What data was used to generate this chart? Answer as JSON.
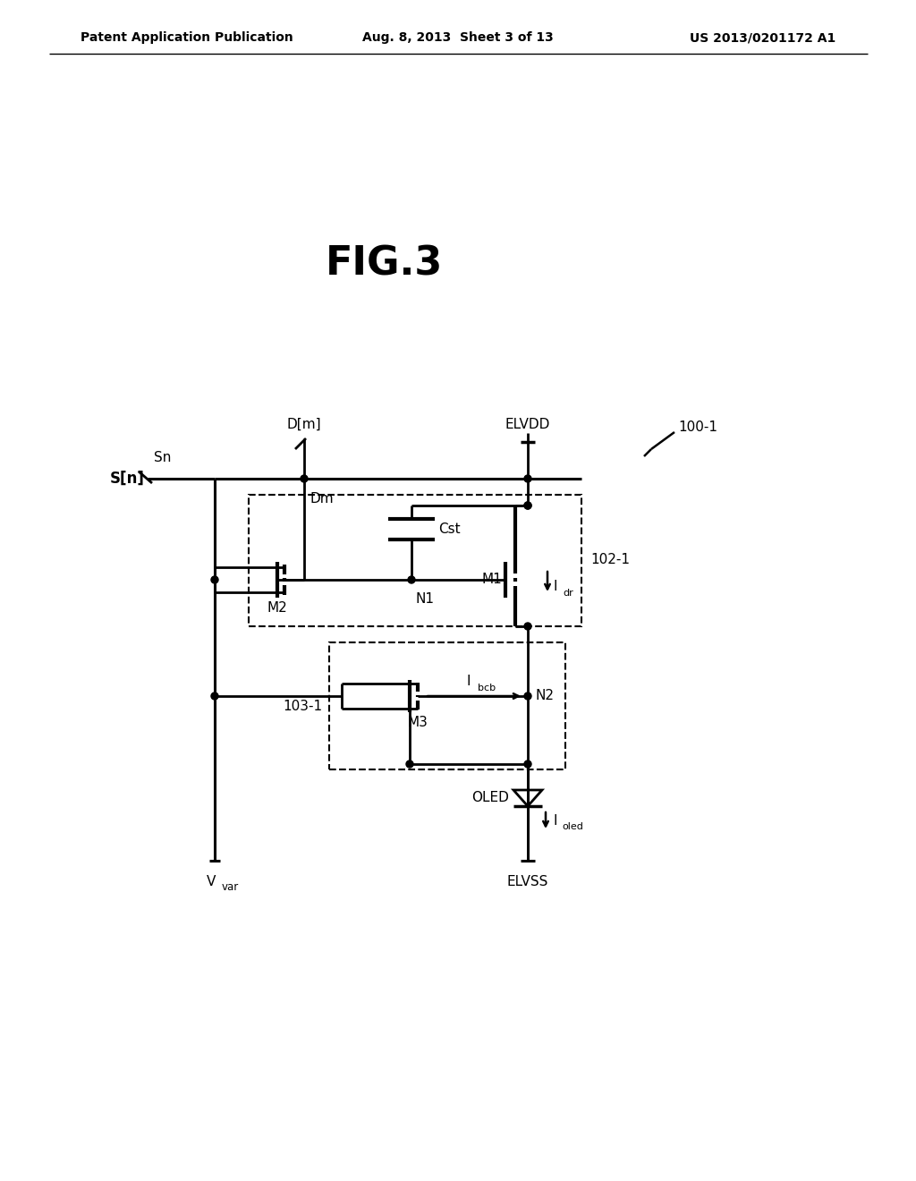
{
  "header_left": "Patent Application Publication",
  "header_mid": "Aug. 8, 2013  Sheet 3 of 13",
  "header_right": "US 2013/0201172 A1",
  "title": "FIG.3",
  "label_100_1": "100-1",
  "label_102_1": "102-1",
  "label_103_1": "103-1",
  "label_Dm": "D[m]",
  "label_Sn": "Sn",
  "label_dm": "Dm",
  "label_Sn2": "S[n]",
  "label_ELVDD": "ELVDD",
  "label_M1": "M1",
  "label_M2": "M2",
  "label_M3": "M3",
  "label_N1": "N1",
  "label_N2": "N2",
  "label_Cst": "Cst",
  "label_Idr": "I",
  "label_Idr_sub": "dr",
  "label_Ibcb": "I",
  "label_Ibcb_sub": "bcb",
  "label_Ioled": "I",
  "label_Ioled_sub": "oled",
  "label_OLED": "OLED",
  "label_Vvar": "V",
  "label_Vvar_sub": "var",
  "label_ELVSS": "ELVSS"
}
